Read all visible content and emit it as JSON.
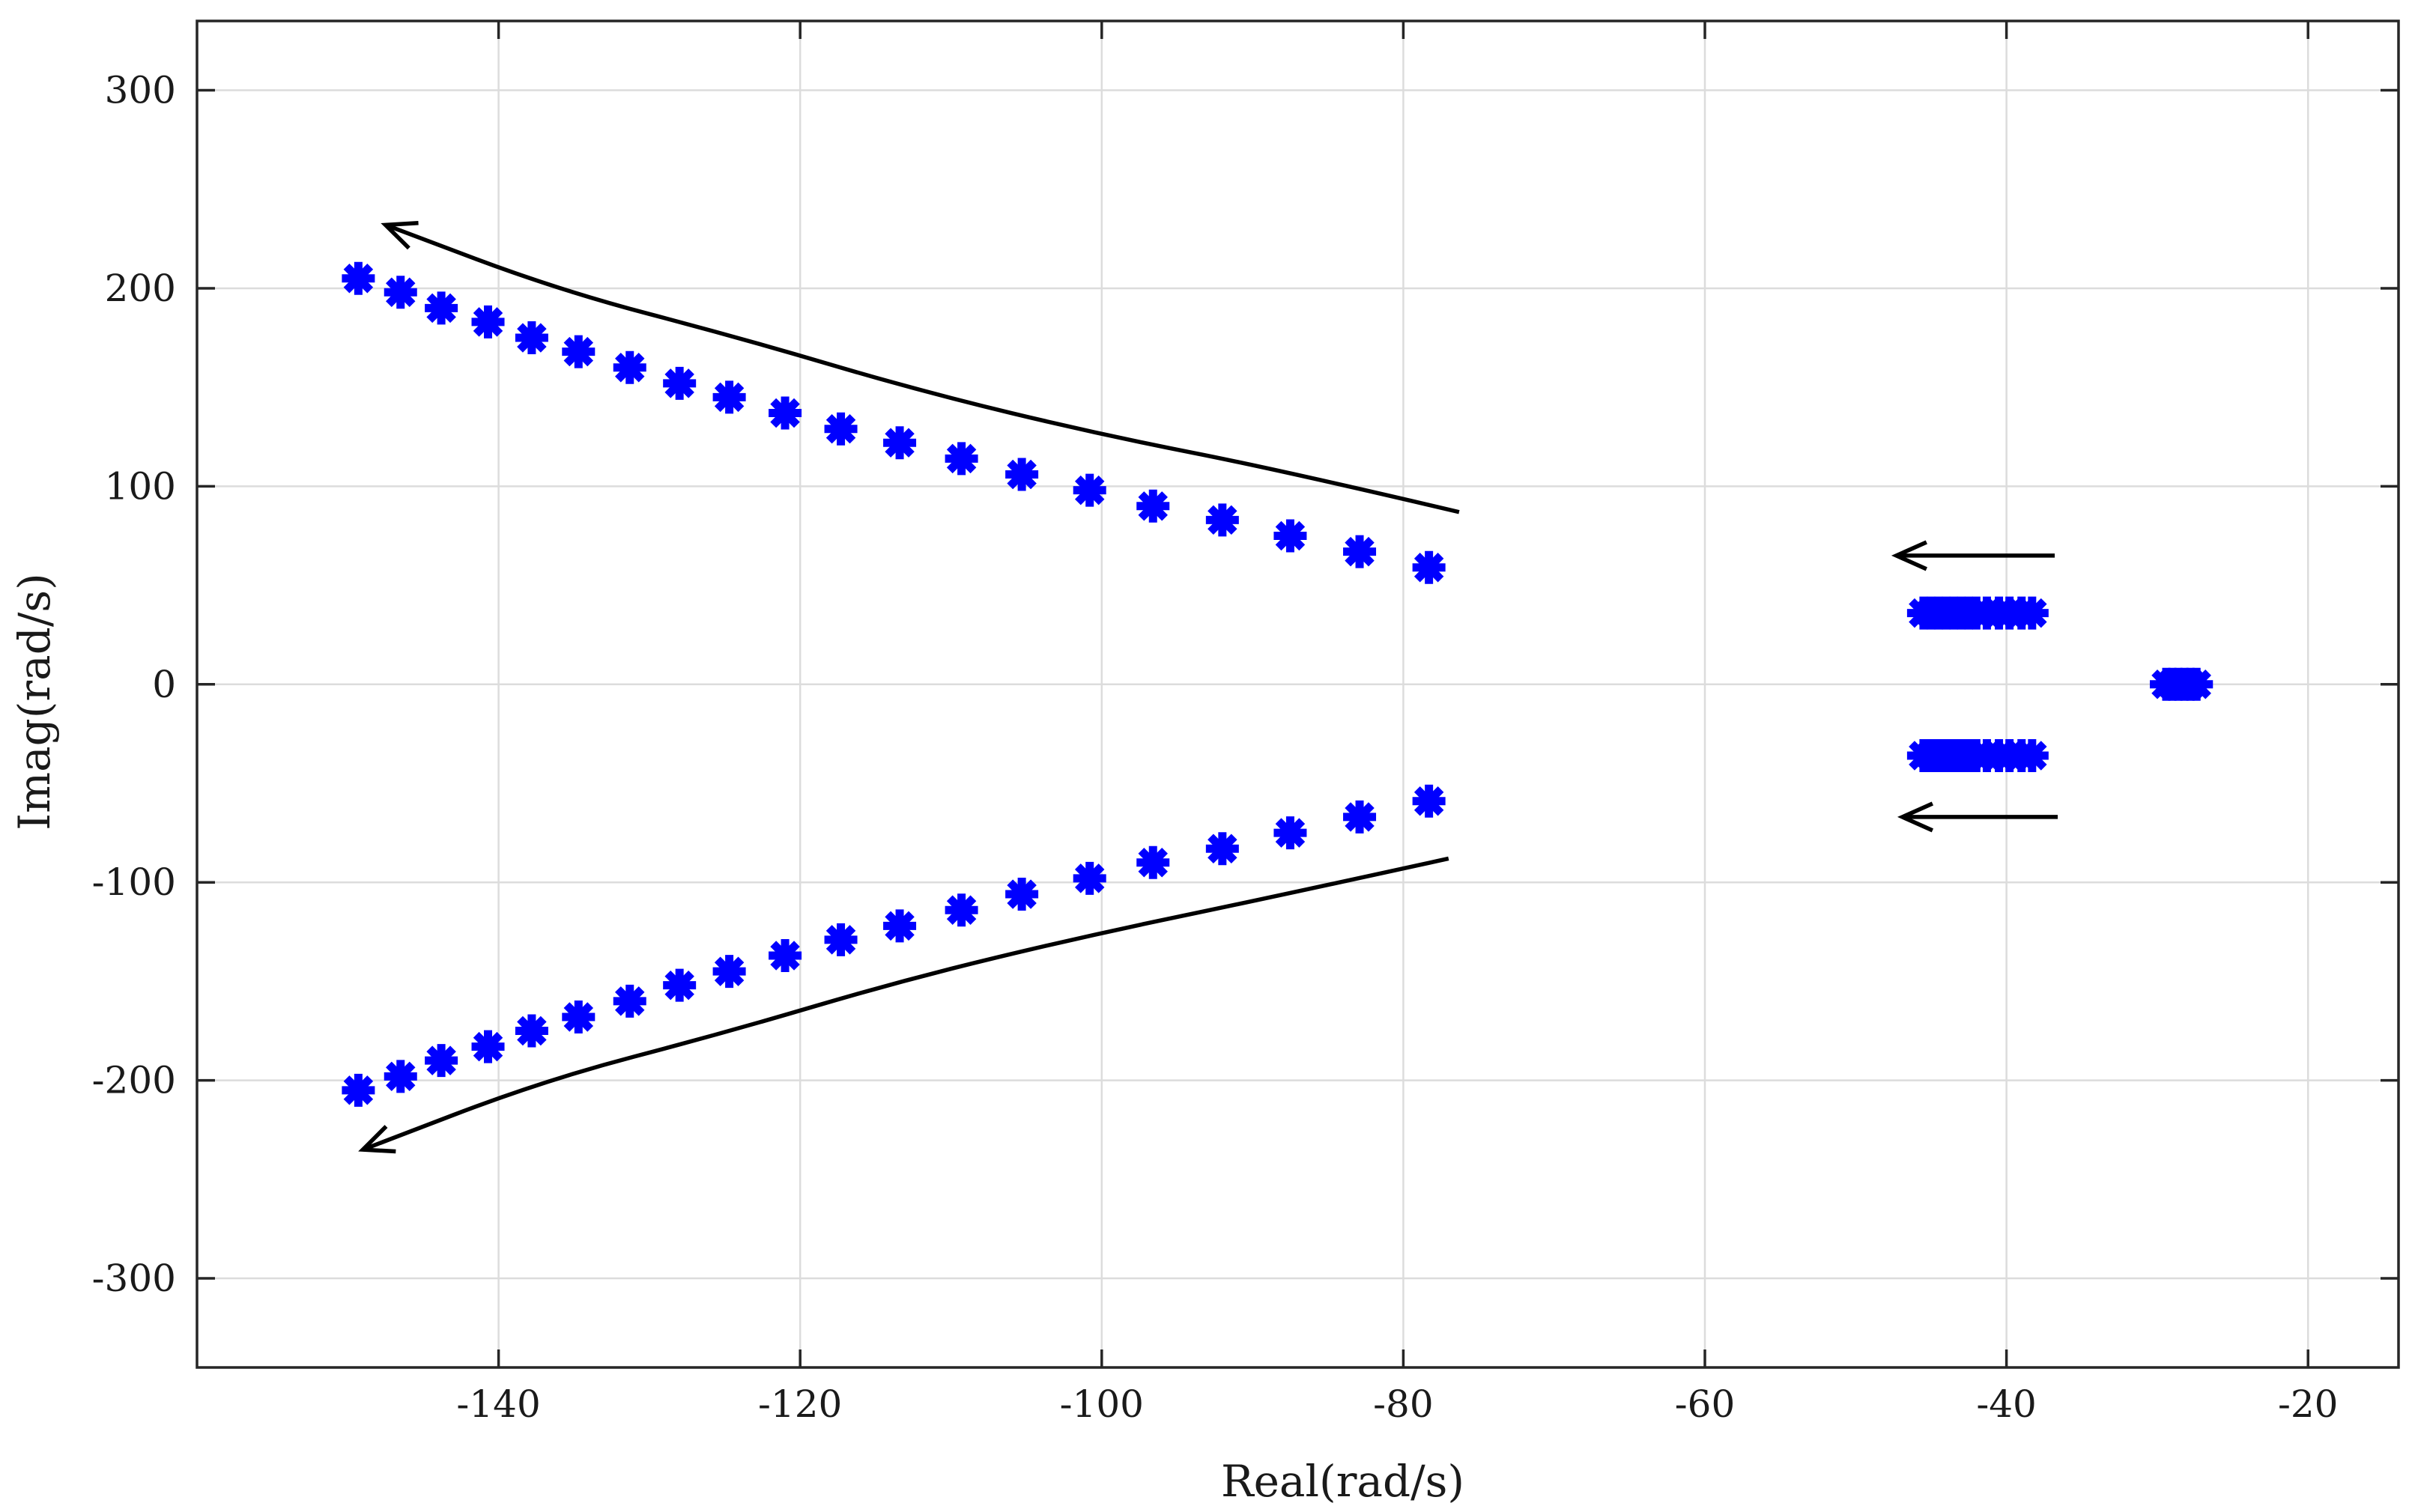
{
  "chart_data": {
    "type": "scatter",
    "title": "",
    "xlabel": "Real(rad/s)",
    "ylabel": "Imag(rad/s)",
    "xlim": [
      -160,
      -14
    ],
    "ylim": [
      -345,
      335
    ],
    "xticks": [
      -140,
      -120,
      -100,
      -80,
      -60,
      -40,
      -20
    ],
    "yticks": [
      -300,
      -200,
      -100,
      0,
      100,
      200,
      300
    ],
    "grid": true,
    "marker": "asterisk",
    "marker_color": "#0000ff",
    "series": [
      {
        "points": [
          [
            -149.3,
            205
          ],
          [
            -146.5,
            198
          ],
          [
            -143.8,
            190
          ],
          [
            -140.7,
            183
          ],
          [
            -137.8,
            175
          ],
          [
            -134.7,
            168
          ],
          [
            -131.3,
            160
          ],
          [
            -128.0,
            152
          ],
          [
            -124.7,
            145
          ],
          [
            -121.0,
            137
          ],
          [
            -117.3,
            129
          ],
          [
            -113.4,
            122
          ],
          [
            -109.3,
            114
          ],
          [
            -105.3,
            106
          ],
          [
            -100.8,
            98
          ],
          [
            -96.6,
            90
          ],
          [
            -92.0,
            83
          ],
          [
            -87.5,
            75
          ],
          [
            -82.9,
            67
          ],
          [
            -78.3,
            59
          ],
          [
            -149.3,
            -205
          ],
          [
            -146.5,
            -198
          ],
          [
            -143.8,
            -190
          ],
          [
            -140.7,
            -183
          ],
          [
            -137.8,
            -175
          ],
          [
            -134.7,
            -168
          ],
          [
            -131.3,
            -160
          ],
          [
            -128.0,
            -152
          ],
          [
            -124.7,
            -145
          ],
          [
            -121.0,
            -137
          ],
          [
            -117.3,
            -129
          ],
          [
            -113.4,
            -122
          ],
          [
            -109.3,
            -114
          ],
          [
            -105.3,
            -106
          ],
          [
            -100.8,
            -98
          ],
          [
            -96.6,
            -90
          ],
          [
            -92.0,
            -83
          ],
          [
            -87.5,
            -75
          ],
          [
            -82.9,
            -67
          ],
          [
            -78.3,
            -59
          ],
          [
            -45.5,
            36
          ],
          [
            -45.0,
            36
          ],
          [
            -44.5,
            36
          ],
          [
            -44.0,
            36
          ],
          [
            -43.5,
            36
          ],
          [
            -43.0,
            36
          ],
          [
            -42.5,
            36
          ],
          [
            -42.0,
            36
          ],
          [
            -41.3,
            36
          ],
          [
            -40.5,
            36
          ],
          [
            -39.8,
            36
          ],
          [
            -39.0,
            36
          ],
          [
            -38.3,
            36
          ],
          [
            -45.5,
            -36
          ],
          [
            -45.0,
            -36
          ],
          [
            -44.5,
            -36
          ],
          [
            -44.0,
            -36
          ],
          [
            -43.5,
            -36
          ],
          [
            -43.0,
            -36
          ],
          [
            -42.5,
            -36
          ],
          [
            -42.0,
            -36
          ],
          [
            -41.3,
            -36
          ],
          [
            -40.5,
            -36
          ],
          [
            -39.8,
            -36
          ],
          [
            -39.0,
            -36
          ],
          [
            -38.3,
            -36
          ],
          [
            -29.4,
            0
          ],
          [
            -29.0,
            0
          ],
          [
            -28.6,
            0
          ],
          [
            -28.2,
            0
          ],
          [
            -27.8,
            0
          ],
          [
            -27.4,
            0
          ]
        ]
      }
    ],
    "annotations": [
      {
        "kind": "arrow",
        "path": [
          [
            -76.3,
            87
          ],
          [
            -88,
            108
          ],
          [
            -100,
            126
          ],
          [
            -112,
            148
          ],
          [
            -124,
            175
          ],
          [
            -136,
            199
          ],
          [
            -147.5,
            232
          ]
        ]
      },
      {
        "kind": "arrow",
        "path": [
          [
            -77.0,
            -88
          ],
          [
            -89,
            -108
          ],
          [
            -101,
            -127
          ],
          [
            -113,
            -149
          ],
          [
            -125,
            -176
          ],
          [
            -137,
            -200
          ],
          [
            -149,
            -235
          ]
        ]
      },
      {
        "kind": "arrow",
        "path": [
          [
            -36.8,
            65
          ],
          [
            -47.3,
            65
          ]
        ]
      },
      {
        "kind": "arrow",
        "path": [
          [
            -36.6,
            -67
          ],
          [
            -46.9,
            -67
          ]
        ]
      }
    ]
  }
}
